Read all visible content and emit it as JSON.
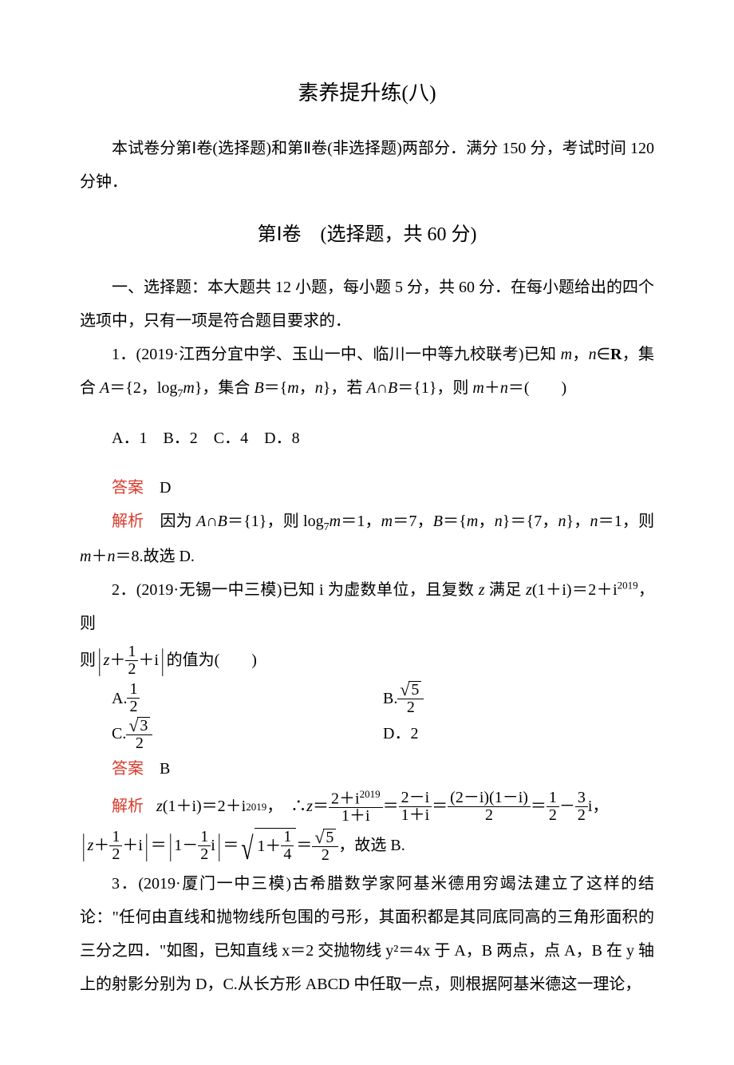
{
  "colors": {
    "text": "#000000",
    "background": "#ffffff",
    "accent": "#d8392b"
  },
  "title": "素养提升练(八)",
  "intro": "本试卷分第Ⅰ卷(选择题)和第Ⅱ卷(非选择题)两部分．满分 150 分，考试时间 120 分钟．",
  "section_heading": "第Ⅰ卷　(选择题，共 60 分)",
  "instructions": "一、选择题：本大题共 12 小题，每小题 5 分，共 60 分．在每小题给出的四个选项中，只有一项是符合题目要求的．",
  "labels": {
    "answer": "答案",
    "explain": "解析"
  },
  "q1": {
    "stem_pre": "1．(2019·江西分宜中学、玉山一中、临川一中等九校联考)已知 ",
    "stem_mid1": "m",
    "stem_mid2": "，",
    "stem_mid3": "n",
    "stem_mid4": "∈",
    "stem_R": "R",
    "stem_post1": "，集合 ",
    "stem_A": "A",
    "stem_post2": "＝{2，log",
    "stem_log_base": "7",
    "stem_post3": "m",
    "stem_post4": "}，集合 ",
    "stem_B": "B",
    "stem_post5": "＝{",
    "stem_post6": "m",
    "stem_post7": "，",
    "stem_post8": "n",
    "stem_post9": "}，若 ",
    "stem_post10": "A",
    "stem_post11": "∩",
    "stem_post12": "B",
    "stem_post13": "＝{1}，则 ",
    "stem_post14": "m",
    "stem_post15": "＋",
    "stem_post16": "n",
    "stem_post17": "＝(　　)",
    "opt_a": "A．1",
    "opt_b": "B．2",
    "opt_c": "C．4",
    "opt_d": "D．8",
    "answer": "D",
    "expl_pre": "因为 ",
    "expl_1": "A",
    "expl_2": "∩",
    "expl_3": "B",
    "expl_4": "＝{1}，则 log",
    "expl_5": "7",
    "expl_6": "m",
    "expl_7": "＝1，",
    "expl_8": "m",
    "expl_9": "＝7，",
    "expl_10": "B",
    "expl_11": "＝{",
    "expl_12": "m",
    "expl_13": "，",
    "expl_14": "n",
    "expl_15": "}＝{7，",
    "expl_16": "n",
    "expl_17": "}，",
    "expl_18": "n",
    "expl_19": "＝1，则 ",
    "expl_20": "m",
    "expl_21": "＋",
    "expl_22": "n",
    "expl_23": "＝8.故选 D."
  },
  "q2": {
    "stem_pre": "2．(2019·无锡一中三模)已知 i 为虚数单位，且复数 ",
    "stem_z": "z",
    "stem_mid": " 满足 ",
    "stem_eq1": "z",
    "stem_eq2": "(1＋i)＝2＋i",
    "stem_exp": "2019",
    "stem_eq3": "，则 ",
    "stem_abs_open": "|",
    "stem_abs_z": "z",
    "stem_abs_plus": "＋",
    "stem_abs_half_num": "1",
    "stem_abs_half_den": "2",
    "stem_abs_plus2": "＋i",
    "stem_abs_close": "|",
    "stem_tail": " 的值为(　　)",
    "optA_label": "A.",
    "optA_num": "1",
    "optA_den": "2",
    "optB_label": "B.",
    "optB_surd": "5",
    "optB_den": "2",
    "optC_label": "C.",
    "optC_surd": "3",
    "optC_den": "2",
    "optD_label": "D．2",
    "answer": "B",
    "expl_pre1": "z",
    "expl_pre2": "(1＋i)＝2＋i",
    "expl_exp": "2019",
    "expl_pre3": "，　∴",
    "expl_pre4": "z",
    "expl_pre5": "＝",
    "f1_num": "2＋i",
    "f1_num_exp": "2019",
    "f1_den": "1＋i",
    "eq": "＝",
    "f2_num": "2－i",
    "f2_den": "1＋i",
    "f3_num": "(2－i)(1－i)",
    "f3_den": "2",
    "f4_num": "1",
    "f4_den": "2",
    "minus": "－",
    "f5_num": "3",
    "f5_den": "2",
    "expl_tail1": "i，",
    "line2_z": "z",
    "line2_plus": "＋",
    "half_num": "1",
    "half_den": "2",
    "line2_i": "＋i",
    "line2_eq": "＝",
    "line2_one": "1－",
    "line2_half_num": "1",
    "line2_half_den": "2",
    "line2_i2": "i",
    "sqrt_in_one": "1＋",
    "sqrt_in_num": "1",
    "sqrt_in_den": "4",
    "result_num_surd": "5",
    "result_den": "2",
    "line2_tail": "，故选 B."
  },
  "q3": {
    "text": "3．(2019·厦门一中三模)古希腊数学家阿基米德用穷竭法建立了这样的结论：\"任何由直线和抛物线所包围的弓形，其面积都是其同底同高的三角形面积的三分之四．\"如图，已知直线 x＝2 交抛物线 y²＝4x 于 A，B 两点，点 A，B 在 y 轴上的射影分别为 D，C.从长方形 ABCD 中任取一点，则根据阿基米德这一理论，"
  }
}
